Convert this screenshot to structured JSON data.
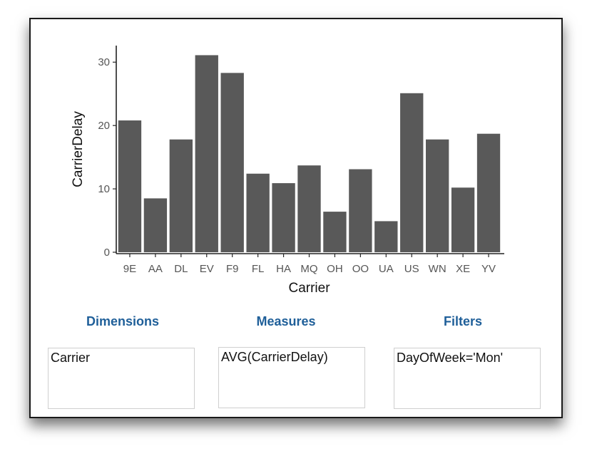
{
  "colors": {
    "bar": "#595959",
    "axis": "#222222",
    "tick_text": "#555555",
    "panel_heading": "#1f5f99"
  },
  "chart_data": {
    "type": "bar",
    "categories": [
      "9E",
      "AA",
      "DL",
      "EV",
      "F9",
      "FL",
      "HA",
      "MQ",
      "OH",
      "OO",
      "UA",
      "US",
      "WN",
      "XE",
      "YV"
    ],
    "values": [
      20.8,
      8.5,
      17.8,
      31.1,
      28.3,
      12.4,
      10.9,
      13.7,
      6.4,
      13.1,
      4.9,
      25.1,
      17.8,
      10.2,
      18.7
    ],
    "xlabel": "Carrier",
    "ylabel": "CarrierDelay",
    "ylim": [
      0,
      32.5
    ],
    "yticks": [
      0,
      10,
      20,
      30
    ],
    "grid": false,
    "legend": "none"
  },
  "panels": {
    "dimensions": {
      "heading": "Dimensions",
      "value": "Carrier"
    },
    "measures": {
      "heading": "Measures",
      "value": "AVG(CarrierDelay)"
    },
    "filters": {
      "heading": "Filters",
      "value": "DayOfWeek='Mon'"
    }
  }
}
